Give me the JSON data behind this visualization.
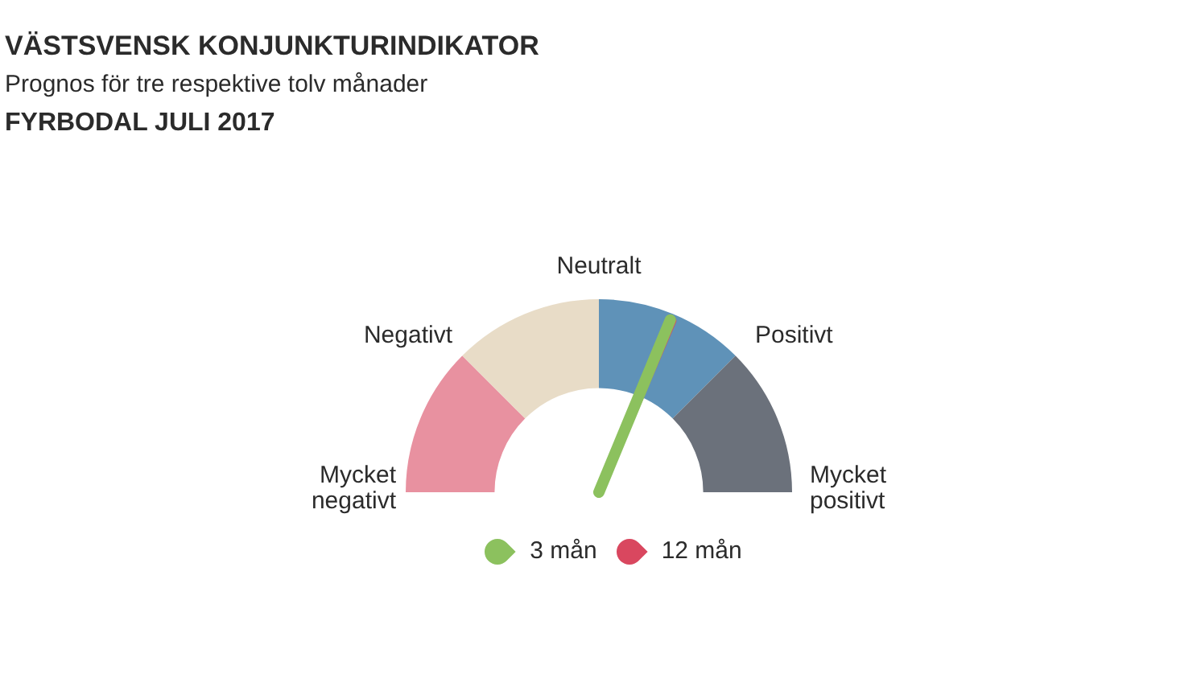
{
  "chart_data": {
    "type": "donut",
    "title": "VÄSTSVENSK KONJUNKTURINDIKATOR",
    "subtitle": "Prognos för tre respektive tolv månader\nFYRBODAL JULI 2017",
    "categories": [
      "Mycket negativt",
      "Negativt",
      "Positivt",
      "Mycket positivt"
    ],
    "values": [
      25,
      25,
      25,
      25
    ],
    "colors": [
      "#e891a0",
      "#e8dcc7",
      "#5f92b8",
      "#6b717b"
    ],
    "annotations": [
      "Neutralt",
      "3 mån",
      "12 mån"
    ],
    "needle": "Positivt"
  }
}
